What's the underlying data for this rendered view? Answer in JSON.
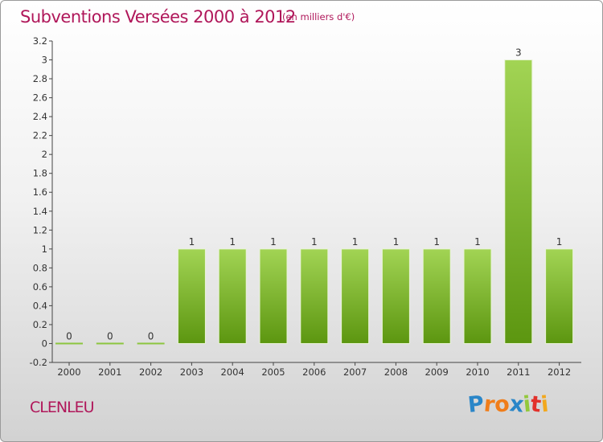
{
  "header": {
    "title": "Subventions Versées 2000 à 2012",
    "subtitle": "(en milliers d'€)"
  },
  "footer": {
    "town": "CLENLEU",
    "logo_letters": [
      "P",
      "r",
      "o",
      "x",
      "i",
      "t",
      "i"
    ],
    "logo_colors": [
      "#2a86c8",
      "#f07d1a",
      "#f07d1a",
      "#2a86c8",
      "#93c83c",
      "#e2312b",
      "#f2a81e"
    ]
  },
  "colors": {
    "title": "#b0175a",
    "bar_light": "#9ccf4d",
    "bar_dark": "#5f9a12",
    "axis": "#333333"
  },
  "chart_data": {
    "type": "bar",
    "categories": [
      "2000",
      "2001",
      "2002",
      "2003",
      "2004",
      "2005",
      "2006",
      "2007",
      "2008",
      "2009",
      "2010",
      "2011",
      "2012"
    ],
    "values": [
      0,
      0,
      0,
      1,
      1,
      1,
      1,
      1,
      1,
      1,
      1,
      3,
      1
    ],
    "data_labels": [
      "0",
      "0",
      "0",
      "1",
      "1",
      "1",
      "1",
      "1",
      "1",
      "1",
      "1",
      "3",
      "1"
    ],
    "title": "Subventions Versées 2000 à 2012",
    "subtitle": "(en milliers d'€)",
    "xlabel": "",
    "ylabel": "",
    "ylim": [
      -0.2,
      3.2
    ],
    "yticks": [
      "-0.2",
      "0",
      "0.2",
      "0.4",
      "0.6",
      "0.8",
      "1",
      "1.2",
      "1.4",
      "1.6",
      "1.8",
      "2",
      "2.2",
      "2.4",
      "2.6",
      "2.8",
      "3",
      "3.2"
    ],
    "ytick_values": [
      -0.2,
      0,
      0.2,
      0.4,
      0.6,
      0.8,
      1,
      1.2,
      1.4,
      1.6,
      1.8,
      2,
      2.2,
      2.4,
      2.6,
      2.8,
      3,
      3.2
    ],
    "grid": false,
    "legend": "none"
  }
}
